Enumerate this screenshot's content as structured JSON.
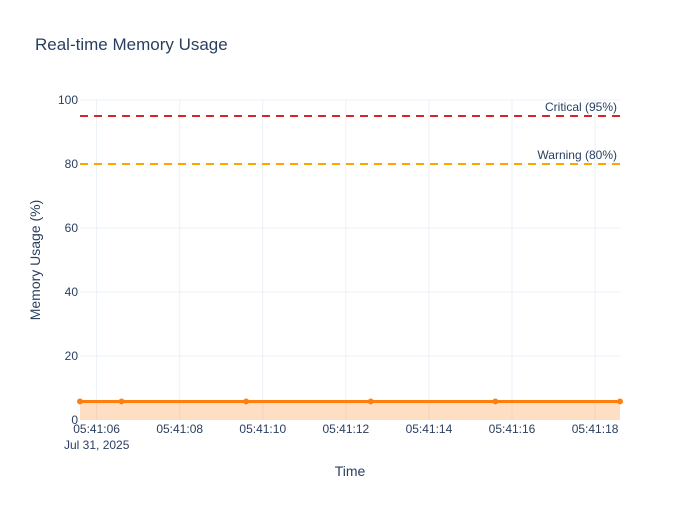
{
  "chart_data": {
    "type": "area",
    "title": "Real-time Memory Usage",
    "xlabel": "Time",
    "ylabel": "Memory Usage (%)",
    "date_label": "Jul 31, 2025",
    "ylim": [
      0,
      100
    ],
    "xlim": [
      "05:41:05.6",
      "05:41:18.6"
    ],
    "y_ticks": [
      0,
      20,
      40,
      60,
      80,
      100
    ],
    "x_ticks": [
      "05:41:06",
      "05:41:08",
      "05:41:10",
      "05:41:12",
      "05:41:14",
      "05:41:16",
      "05:41:18"
    ],
    "grid": true,
    "series": [
      {
        "x": [
          "05:41:05.6",
          "05:41:06.6",
          "05:41:09.6",
          "05:41:12.6",
          "05:41:15.6",
          "05:41:18.6"
        ],
        "y": [
          5.8,
          5.8,
          5.8,
          5.8,
          5.8,
          5.8
        ],
        "color": "#ff7f0e",
        "fill": "tozeroy"
      }
    ],
    "thresholds": [
      {
        "label": "Warning (80%)",
        "value": 80,
        "color": "#ffa500"
      },
      {
        "label": "Critical (95%)",
        "value": 95,
        "color": "#d62728"
      }
    ]
  }
}
